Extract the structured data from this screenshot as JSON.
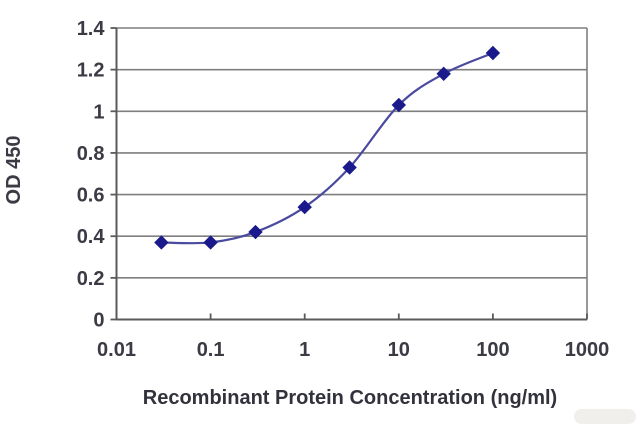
{
  "chart_data": {
    "type": "line",
    "title": "",
    "xlabel": "Recombinant Protein Concentration (ng/ml)",
    "ylabel": "OD 450",
    "x_scale": "log",
    "xlim": [
      0.01,
      1000
    ],
    "ylim": [
      0,
      1.4
    ],
    "x": [
      0.03,
      0.1,
      0.3,
      1,
      3,
      10,
      30,
      100
    ],
    "y": [
      0.37,
      0.37,
      0.42,
      0.54,
      0.73,
      1.03,
      1.18,
      1.28
    ],
    "x_tick_values": [
      0.01,
      0.1,
      1,
      10,
      100,
      1000
    ],
    "x_tick_labels": [
      "0.01",
      "0.1",
      "1",
      "10",
      "100",
      "1000"
    ],
    "y_tick_values": [
      0,
      0.2,
      0.4,
      0.6,
      0.8,
      1.0,
      1.2,
      1.4
    ],
    "y_tick_labels": [
      "0",
      "0.2",
      "0.4",
      "0.6",
      "0.8",
      "1",
      "1.2",
      "1.4"
    ],
    "grid": "horizontal-only",
    "legend": "none",
    "marker": "diamond",
    "colors": {
      "marker": "#1a1a8c",
      "line": "#4a4aa0",
      "gridline": "#7f7f7f",
      "axis": "#5a5a5a",
      "text": "#3b3b45"
    }
  }
}
